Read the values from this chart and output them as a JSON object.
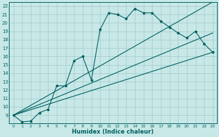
{
  "title": "",
  "xlabel": "Humidex (Indice chaleur)",
  "background_color": "#c8e8e8",
  "grid_color": "#a0c8c8",
  "line_color": "#006060",
  "xlim": [
    -0.5,
    23.5
  ],
  "ylim": [
    8,
    22.5
  ],
  "xticks": [
    0,
    1,
    2,
    3,
    4,
    5,
    6,
    7,
    8,
    9,
    10,
    11,
    12,
    13,
    14,
    15,
    16,
    17,
    18,
    19,
    20,
    21,
    22,
    23
  ],
  "yticks": [
    9,
    10,
    11,
    12,
    13,
    14,
    15,
    16,
    17,
    18,
    19,
    20,
    21,
    22
  ],
  "main_x": [
    0,
    1,
    2,
    3,
    4,
    5,
    6,
    7,
    8,
    9,
    10,
    11,
    12,
    13,
    14,
    15,
    16,
    17,
    18,
    19,
    20,
    21,
    22,
    23
  ],
  "main_y": [
    9.0,
    8.2,
    8.3,
    9.3,
    9.7,
    12.5,
    12.5,
    15.5,
    16.0,
    13.2,
    19.2,
    21.2,
    21.0,
    20.5,
    21.7,
    21.2,
    21.2,
    20.2,
    19.5,
    18.8,
    18.2,
    19.0,
    17.5,
    16.5
  ],
  "line1_x": [
    0,
    23
  ],
  "line1_y": [
    9.0,
    16.5
  ],
  "line2_x": [
    0,
    23
  ],
  "line2_y": [
    9.0,
    18.8
  ],
  "line3_x": [
    0,
    23
  ],
  "line3_y": [
    9.0,
    22.5
  ]
}
